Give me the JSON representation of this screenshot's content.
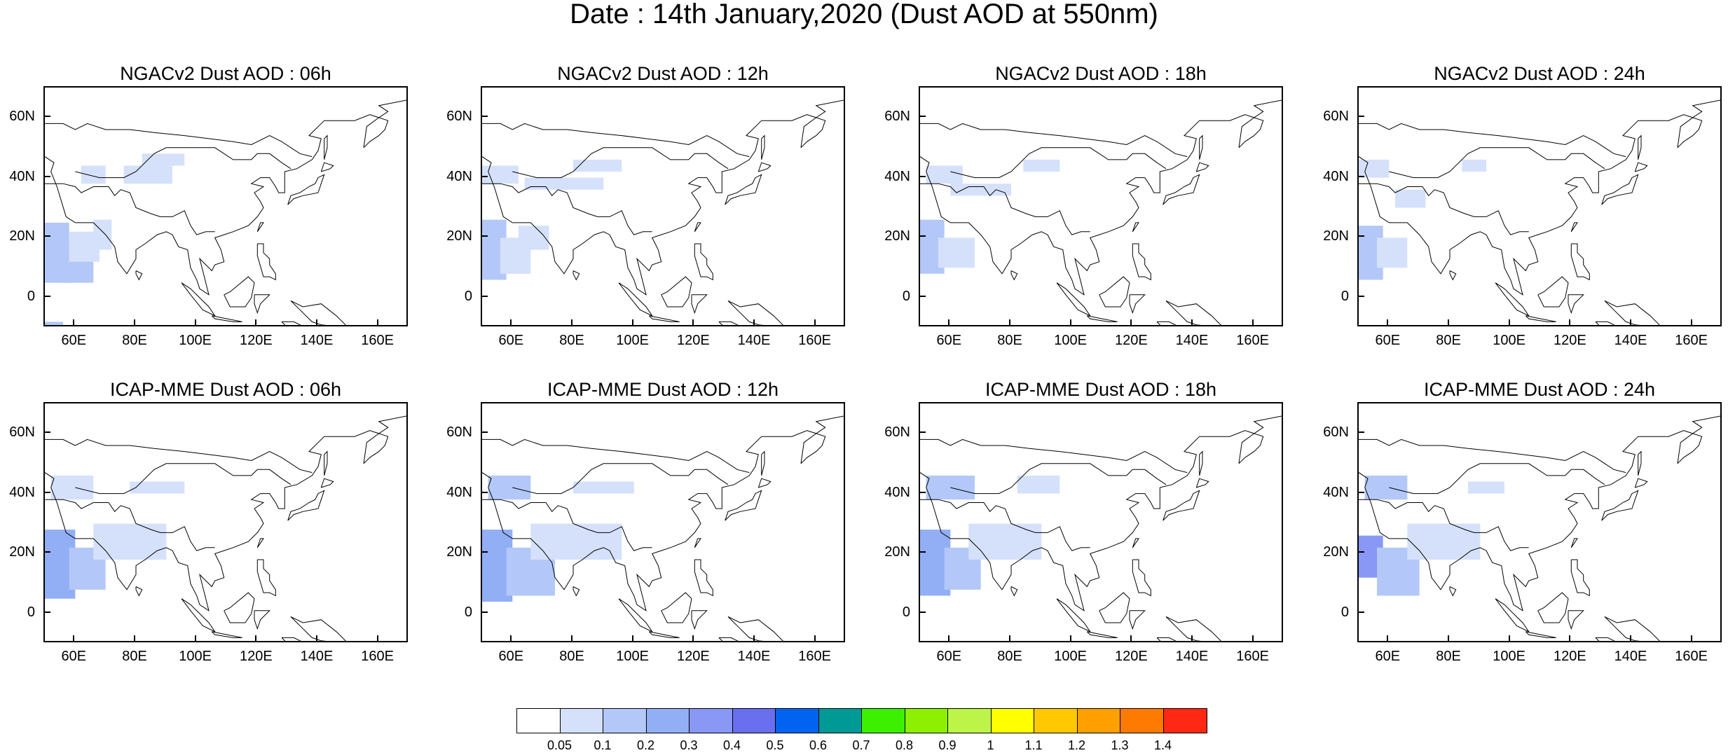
{
  "title": "Date : 14th January,2020 (Dust AOD at 550nm)",
  "panels": [
    {
      "title": "NGACv2 Dust AOD : 06h",
      "model": "NGACv2",
      "lead": "06h"
    },
    {
      "title": "NGACv2 Dust AOD : 12h",
      "model": "NGACv2",
      "lead": "12h"
    },
    {
      "title": "NGACv2 Dust AOD : 18h",
      "model": "NGACv2",
      "lead": "18h"
    },
    {
      "title": "NGACv2 Dust AOD : 24h",
      "model": "NGACv2",
      "lead": "24h"
    },
    {
      "title": "ICAP-MME Dust AOD : 06h",
      "model": "ICAP-MME",
      "lead": "06h"
    },
    {
      "title": "ICAP-MME Dust AOD : 12h",
      "model": "ICAP-MME",
      "lead": "12h"
    },
    {
      "title": "ICAP-MME Dust AOD : 18h",
      "model": "ICAP-MME",
      "lead": "18h"
    },
    {
      "title": "ICAP-MME Dust AOD : 24h",
      "model": "ICAP-MME",
      "lead": "24h"
    }
  ],
  "map": {
    "lon_range": [
      50,
      170
    ],
    "lat_range": [
      -10,
      70
    ],
    "lat_ticks": [
      {
        "value": 60,
        "label": "60N"
      },
      {
        "value": 40,
        "label": "40N"
      },
      {
        "value": 20,
        "label": "20N"
      },
      {
        "value": 0,
        "label": "0"
      }
    ],
    "lon_ticks": [
      {
        "value": 60,
        "label": "60E"
      },
      {
        "value": 80,
        "label": "80E"
      },
      {
        "value": 100,
        "label": "100E"
      },
      {
        "value": 120,
        "label": "120E"
      },
      {
        "value": 140,
        "label": "140E"
      },
      {
        "value": 160,
        "label": "160E"
      }
    ]
  },
  "colorbar": {
    "colors": [
      "#ffffff",
      "#d5e1fb",
      "#b3c8f8",
      "#92aef5",
      "#8898f4",
      "#6a6ff0",
      "#0064f0",
      "#009a96",
      "#3cf000",
      "#8cf000",
      "#bcf547",
      "#ffff00",
      "#ffc800",
      "#ffa000",
      "#ff7a00",
      "#ff2814"
    ],
    "labels": [
      "0.05",
      "0.1",
      "0.2",
      "0.3",
      "0.4",
      "0.5",
      "0.6",
      "0.7",
      "0.8",
      "0.9",
      "1",
      "1.1",
      "1.2",
      "1.3",
      "1.4"
    ]
  },
  "chart_data": {
    "type": "heatmap",
    "title": "Date : 14th January,2020 (Dust AOD at 550nm)",
    "variable": "Dust AOD at 550nm",
    "xlim": [
      50,
      170
    ],
    "ylim": [
      -10,
      70
    ],
    "levels": [
      0.05,
      0.1,
      0.2,
      0.3,
      0.4,
      0.5,
      0.6,
      0.7,
      0.8,
      0.9,
      1,
      1.1,
      1.2,
      1.3,
      1.4
    ],
    "fields": [
      {
        "panel": 0,
        "cells": [
          {
            "lon": [
              50,
              58
            ],
            "lat": [
              5,
              25
            ],
            "level": 2
          },
          {
            "lon": [
              56,
              66
            ],
            "lat": [
              5,
              18
            ],
            "level": 2
          },
          {
            "lon": [
              58,
              68
            ],
            "lat": [
              12,
              22
            ],
            "level": 1
          },
          {
            "lon": [
              66,
              72
            ],
            "lat": [
              16,
              26
            ],
            "level": 1
          },
          {
            "lon": [
              62,
              70
            ],
            "lat": [
              38,
              44
            ],
            "level": 1
          },
          {
            "lon": [
              76,
              92
            ],
            "lat": [
              38,
              44
            ],
            "level": 1
          },
          {
            "lon": [
              82,
              96
            ],
            "lat": [
              44,
              48
            ],
            "level": 1
          },
          {
            "lon": [
              50,
              56
            ],
            "lat": [
              -10,
              -8
            ],
            "level": 2
          }
        ]
      },
      {
        "panel": 1,
        "cells": [
          {
            "lon": [
              50,
              58
            ],
            "lat": [
              6,
              26
            ],
            "level": 2
          },
          {
            "lon": [
              56,
              66
            ],
            "lat": [
              8,
              20
            ],
            "level": 1
          },
          {
            "lon": [
              62,
              72
            ],
            "lat": [
              16,
              24
            ],
            "level": 1
          },
          {
            "lon": [
              50,
              62
            ],
            "lat": [
              38,
              44
            ],
            "level": 1
          },
          {
            "lon": [
              80,
              96
            ],
            "lat": [
              42,
              46
            ],
            "level": 1
          },
          {
            "lon": [
              64,
              90
            ],
            "lat": [
              36,
              40
            ],
            "level": 1
          }
        ]
      },
      {
        "panel": 2,
        "cells": [
          {
            "lon": [
              50,
              58
            ],
            "lat": [
              8,
              26
            ],
            "level": 2
          },
          {
            "lon": [
              56,
              68
            ],
            "lat": [
              10,
              20
            ],
            "level": 1
          },
          {
            "lon": [
              52,
              64
            ],
            "lat": [
              38,
              44
            ],
            "level": 1
          },
          {
            "lon": [
              84,
              96
            ],
            "lat": [
              42,
              46
            ],
            "level": 1
          },
          {
            "lon": [
              60,
              80
            ],
            "lat": [
              34,
              38
            ],
            "level": 1
          }
        ]
      },
      {
        "panel": 3,
        "cells": [
          {
            "lon": [
              50,
              58
            ],
            "lat": [
              6,
              24
            ],
            "level": 2
          },
          {
            "lon": [
              56,
              66
            ],
            "lat": [
              10,
              20
            ],
            "level": 1
          },
          {
            "lon": [
              50,
              60
            ],
            "lat": [
              40,
              46
            ],
            "level": 1
          },
          {
            "lon": [
              84,
              92
            ],
            "lat": [
              42,
              46
            ],
            "level": 1
          },
          {
            "lon": [
              62,
              72
            ],
            "lat": [
              30,
              36
            ],
            "level": 1
          }
        ]
      },
      {
        "panel": 4,
        "cells": [
          {
            "lon": [
              50,
              60
            ],
            "lat": [
              5,
              28
            ],
            "level": 3
          },
          {
            "lon": [
              58,
              70
            ],
            "lat": [
              8,
              22
            ],
            "level": 2
          },
          {
            "lon": [
              66,
              90
            ],
            "lat": [
              18,
              30
            ],
            "level": 1
          },
          {
            "lon": [
              52,
              66
            ],
            "lat": [
              38,
              46
            ],
            "level": 1
          },
          {
            "lon": [
              78,
              96
            ],
            "lat": [
              40,
              44
            ],
            "level": 1
          }
        ]
      },
      {
        "panel": 5,
        "cells": [
          {
            "lon": [
              50,
              60
            ],
            "lat": [
              4,
              28
            ],
            "level": 3
          },
          {
            "lon": [
              58,
              74
            ],
            "lat": [
              6,
              22
            ],
            "level": 2
          },
          {
            "lon": [
              66,
              96
            ],
            "lat": [
              18,
              30
            ],
            "level": 1
          },
          {
            "lon": [
              52,
              66
            ],
            "lat": [
              38,
              46
            ],
            "level": 2
          },
          {
            "lon": [
              80,
              100
            ],
            "lat": [
              40,
              44
            ],
            "level": 1
          }
        ]
      },
      {
        "panel": 6,
        "cells": [
          {
            "lon": [
              50,
              60
            ],
            "lat": [
              6,
              28
            ],
            "level": 3
          },
          {
            "lon": [
              58,
              70
            ],
            "lat": [
              8,
              22
            ],
            "level": 2
          },
          {
            "lon": [
              66,
              90
            ],
            "lat": [
              18,
              30
            ],
            "level": 1
          },
          {
            "lon": [
              52,
              68
            ],
            "lat": [
              38,
              46
            ],
            "level": 2
          },
          {
            "lon": [
              82,
              96
            ],
            "lat": [
              40,
              46
            ],
            "level": 1
          }
        ]
      },
      {
        "panel": 7,
        "cells": [
          {
            "lon": [
              50,
              58
            ],
            "lat": [
              12,
              26
            ],
            "level": 4
          },
          {
            "lon": [
              56,
              70
            ],
            "lat": [
              6,
              22
            ],
            "level": 2
          },
          {
            "lon": [
              66,
              90
            ],
            "lat": [
              18,
              30
            ],
            "level": 1
          },
          {
            "lon": [
              52,
              66
            ],
            "lat": [
              38,
              46
            ],
            "level": 2
          },
          {
            "lon": [
              86,
              98
            ],
            "lat": [
              40,
              44
            ],
            "level": 1
          }
        ]
      }
    ]
  }
}
